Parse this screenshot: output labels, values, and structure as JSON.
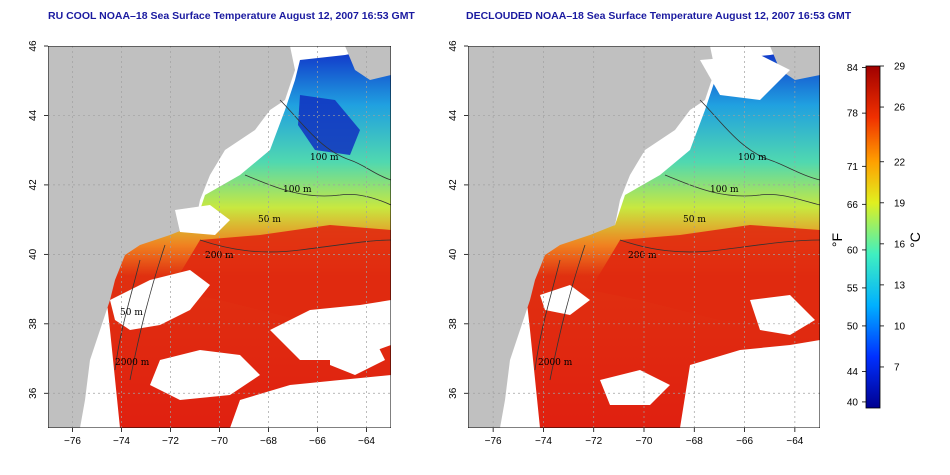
{
  "colors": {
    "land": "#c0c0c0",
    "cloud": "#ffffff",
    "frame": "#000000",
    "grid": "#a0a0a0",
    "contour": "#333333"
  },
  "maps": [
    {
      "id": "left",
      "title": "RU COOL NOAA–18 Sea Surface Temperature August 12, 2007 16:53 GMT",
      "isobaths": [
        "100 m",
        "100 m",
        "50 m",
        "200 m",
        "50 m",
        "2000 m"
      ]
    },
    {
      "id": "right",
      "title": "DECLOUDED NOAA–18 Sea Surface Temperature August 12, 2007 16:53 GMT",
      "isobaths": [
        "100 m",
        "100 m",
        "50 m",
        "200 m",
        "2000 m"
      ]
    }
  ],
  "axes": {
    "x_ticks": [
      "−76",
      "−74",
      "−72",
      "−70",
      "−68",
      "−66",
      "−64"
    ],
    "y_ticks": [
      "36",
      "38",
      "40",
      "42",
      "44",
      "46"
    ],
    "lon_range": [
      -77,
      -63
    ],
    "lat_range": [
      35,
      46
    ]
  },
  "colorbar": {
    "fahrenheit_label": "°F",
    "celsius_label": "°C",
    "fahrenheit_ticks": [
      "40",
      "44",
      "50",
      "55",
      "60",
      "66",
      "71",
      "78",
      "84"
    ],
    "celsius_ticks": [
      "7",
      "10",
      "13",
      "16",
      "19",
      "22",
      "26",
      "29"
    ],
    "celsius_range": [
      4,
      29
    ]
  }
}
